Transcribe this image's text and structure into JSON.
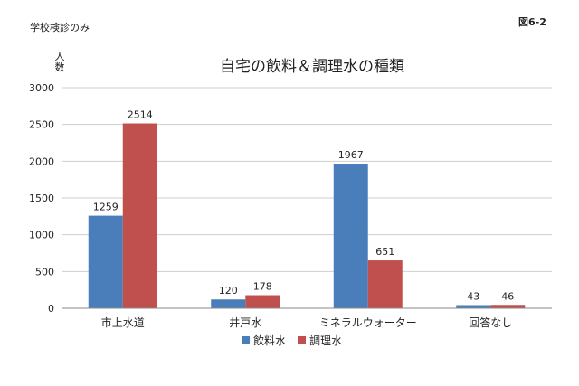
{
  "note": "学校検診のみ",
  "figure_label": "図6-2",
  "chart_data": {
    "type": "bar",
    "title": "自宅の飲料＆調理水の種類",
    "ylabel": "人数",
    "xlabel": "",
    "ylim": [
      0,
      3000
    ],
    "yticks": [
      0,
      500,
      1000,
      1500,
      2000,
      2500,
      3000
    ],
    "grid": true,
    "legend_position": "bottom",
    "categories": [
      "市上水道",
      "井戸水",
      "ミネラルウォーター",
      "回答なし"
    ],
    "series": [
      {
        "name": "飲料水",
        "color": "#4a7ebb",
        "values": [
          1259,
          120,
          1967,
          43
        ]
      },
      {
        "name": "調理水",
        "color": "#c0504d",
        "values": [
          2514,
          178,
          651,
          46
        ]
      }
    ]
  }
}
